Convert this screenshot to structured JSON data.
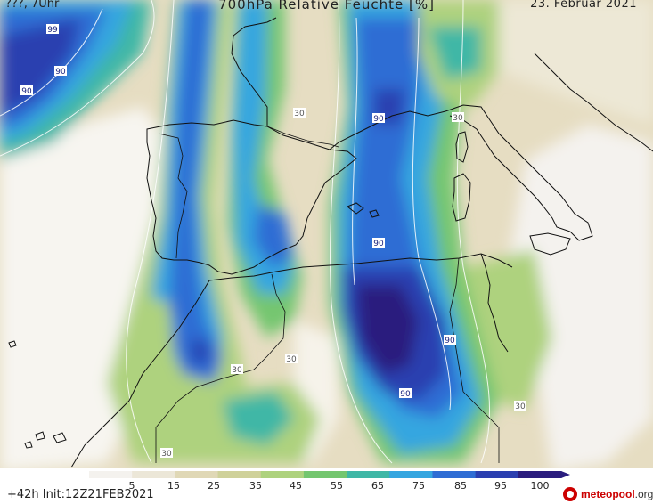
{
  "header": {
    "valid_time": "???, 7Uhr",
    "title": "700hPa Relative Feuchte [%]",
    "date": "23. Februar 2021"
  },
  "footer": {
    "run_info": "+42h Init:12Z21FEB2021",
    "brand": "meteopool",
    "brand_suffix": ".org"
  },
  "legend": {
    "ticks": [
      "5",
      "15",
      "25",
      "35",
      "45",
      "55",
      "65",
      "75",
      "85",
      "95",
      "100"
    ],
    "colors": [
      "#f4f2ee",
      "#ece7d8",
      "#e0d8b6",
      "#cfd19a",
      "#aed27e",
      "#74c66f",
      "#3fb7a6",
      "#35a6e0",
      "#2f6dd4",
      "#2b3fb0",
      "#2a1d7e"
    ]
  },
  "isoline_labels": [
    "99",
    "90",
    "90",
    "30",
    "90",
    "30",
    "90",
    "30",
    "30",
    "90",
    "90",
    "30",
    "30"
  ]
}
